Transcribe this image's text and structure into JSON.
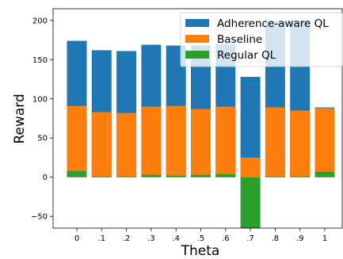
{
  "chart_data": {
    "type": "bar",
    "title": "",
    "xlabel": "Theta",
    "ylabel": "Reward",
    "categories": [
      "0",
      ".1",
      ".2",
      ".3",
      ".4",
      ".5",
      ".6",
      ".7",
      ".8",
      ".9",
      "1"
    ],
    "ylim": [
      -65,
      215
    ],
    "yticks": [
      -50,
      0,
      50,
      100,
      150,
      200
    ],
    "grid": false,
    "legend_position": "top-right",
    "overlaid": true,
    "series": [
      {
        "name": "Adherence-aware QL",
        "color": "#1f77b4",
        "values": [
          174,
          162,
          161,
          169,
          168,
          168,
          170,
          128,
          199,
          200,
          89
        ]
      },
      {
        "name": "Baseline",
        "color": "#ff7f0e",
        "values": [
          91,
          83,
          82,
          90,
          91,
          87,
          90,
          25,
          89,
          85,
          88
        ]
      },
      {
        "name": "Regular QL",
        "color": "#2ca02c",
        "values": [
          8,
          1,
          1,
          3,
          2,
          3,
          4,
          -65,
          1,
          1,
          7
        ]
      }
    ]
  }
}
